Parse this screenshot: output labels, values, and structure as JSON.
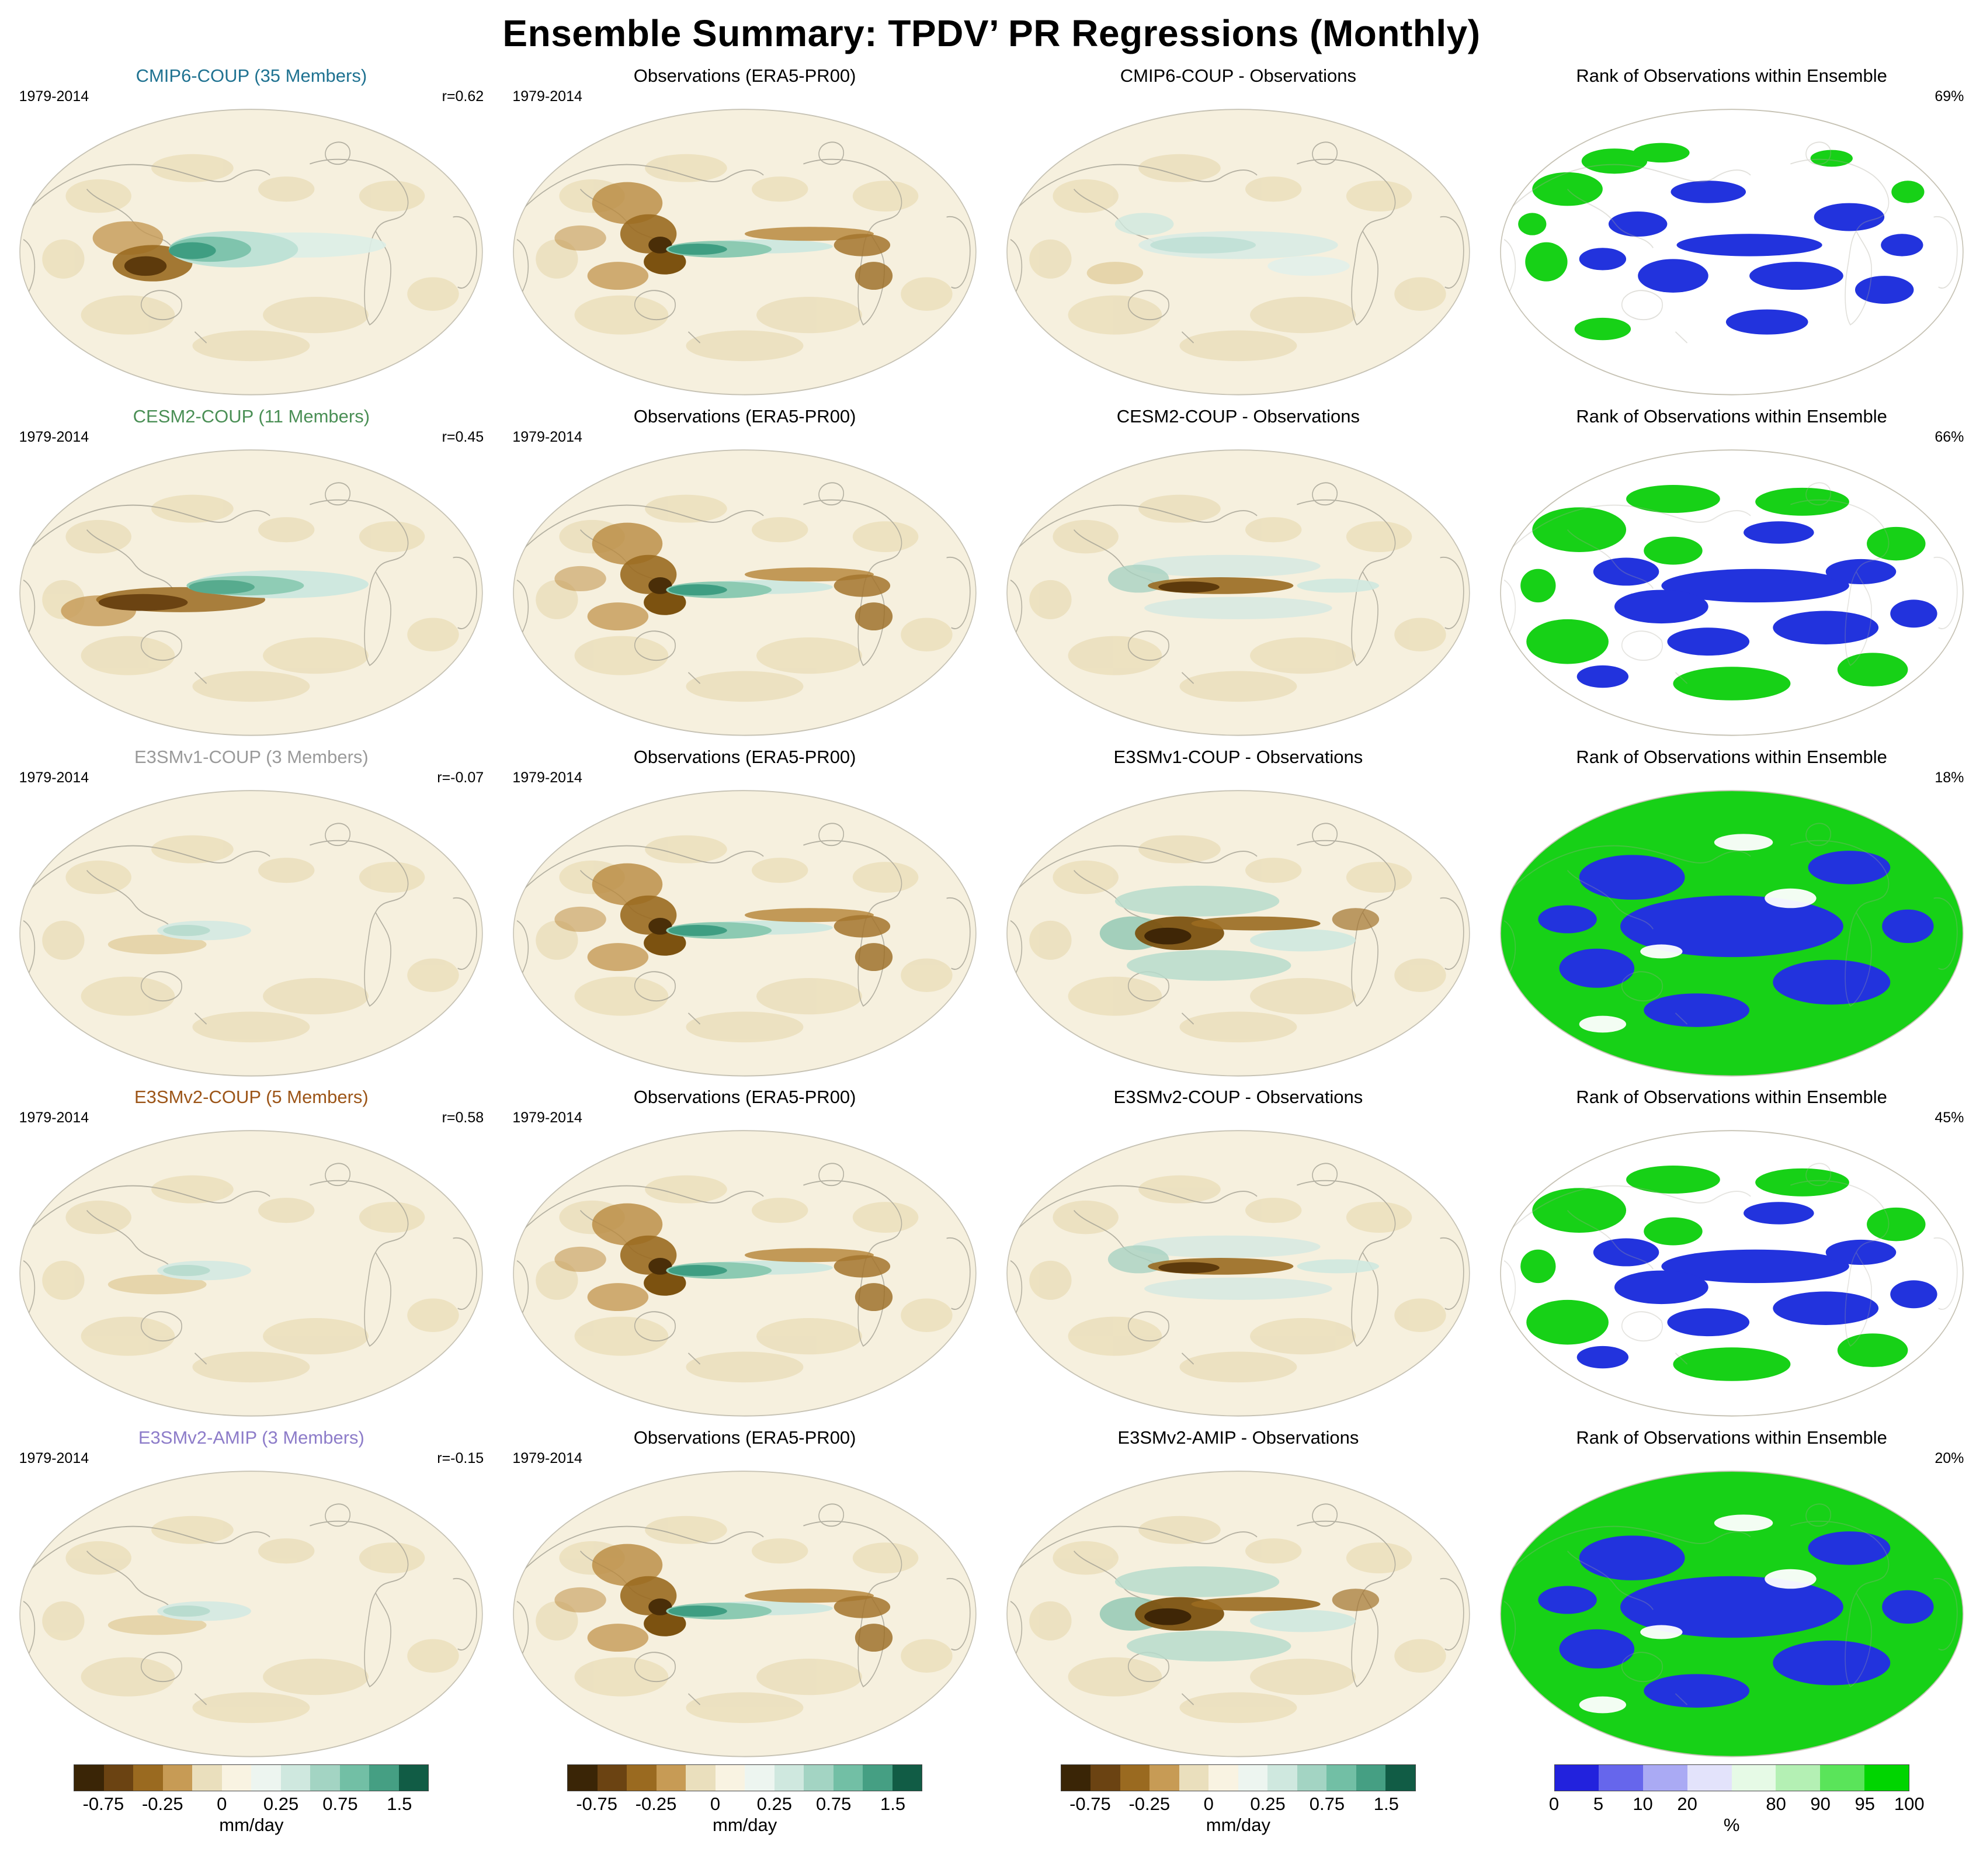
{
  "title": "Ensemble Summary: TPDV’ PR Regressions (Monthly)",
  "rows": [
    {
      "model_label": "CMIP6-COUP (35 Members)",
      "model_color": "#1f7291",
      "period": "1979-2014",
      "r_value": "r=0.62",
      "obs_title": "Observations (ERA5-PR00)",
      "obs_period": "1979-2014",
      "diff_title": "CMIP6-COUP - Observations",
      "rank_title": "Rank of Observations within Ensemble",
      "rank_percent": "69%"
    },
    {
      "model_label": "CESM2-COUP (11 Members)",
      "model_color": "#4a8f55",
      "period": "1979-2014",
      "r_value": "r=0.45",
      "obs_title": "Observations (ERA5-PR00)",
      "obs_period": "1979-2014",
      "diff_title": "CESM2-COUP - Observations",
      "rank_title": "Rank of Observations within Ensemble",
      "rank_percent": "66%"
    },
    {
      "model_label": "E3SMv1-COUP (3 Members)",
      "model_color": "#9a9a9a",
      "period": "1979-2014",
      "r_value": "r=-0.07",
      "obs_title": "Observations (ERA5-PR00)",
      "obs_period": "1979-2014",
      "diff_title": "E3SMv1-COUP - Observations",
      "rank_title": "Rank of Observations within Ensemble",
      "rank_percent": "18%"
    },
    {
      "model_label": "E3SMv2-COUP (5 Members)",
      "model_color": "#9c5518",
      "period": "1979-2014",
      "r_value": "r=0.58",
      "obs_title": "Observations (ERA5-PR00)",
      "obs_period": "1979-2014",
      "diff_title": "E3SMv2-COUP - Observations",
      "rank_title": "Rank of Observations within Ensemble",
      "rank_percent": "45%"
    },
    {
      "model_label": "E3SMv2-AMIP (3 Members)",
      "model_color": "#8d7cc9",
      "period": "1979-2014",
      "r_value": "r=-0.15",
      "obs_title": "Observations (ERA5-PR00)",
      "obs_period": "1979-2014",
      "diff_title": "E3SMv2-AMIP - Observations",
      "rank_title": "Rank of Observations within Ensemble",
      "rank_percent": "20%"
    }
  ],
  "colorbars": {
    "mmday": {
      "unit": "mm/day",
      "segments": [
        "#3a2506",
        "#6b4312",
        "#9a6a20",
        "#c79b55",
        "#eadfbd",
        "#f9f3e2",
        "#edf5f0",
        "#cfe8df",
        "#a3d4c3",
        "#72bfa5",
        "#459f83",
        "#115c45"
      ],
      "ticks": [
        {
          "label": "-0.75",
          "boundary": 1
        },
        {
          "label": "-0.25",
          "boundary": 3
        },
        {
          "label": "0",
          "boundary": 5
        },
        {
          "label": "0.25",
          "boundary": 7
        },
        {
          "label": "0.75",
          "boundary": 9
        },
        {
          "label": "1.5",
          "boundary": 11
        }
      ]
    },
    "percent": {
      "unit": "%",
      "segments": [
        "#2222dd",
        "#6666ec",
        "#aaaaf4",
        "#e3e3fb",
        "#e6fae6",
        "#b4f0b4",
        "#5ae45a",
        "#00d500"
      ],
      "ticks": [
        {
          "label": "0",
          "boundary": 0
        },
        {
          "label": "5",
          "boundary": 1
        },
        {
          "label": "10",
          "boundary": 2
        },
        {
          "label": "20",
          "boundary": 3
        },
        {
          "label": "80",
          "boundary": 5
        },
        {
          "label": "90",
          "boundary": 6
        },
        {
          "label": "95",
          "boundary": 7
        },
        {
          "label": "100",
          "boundary": 8
        }
      ]
    }
  },
  "chart_data": {
    "type": "heatmap",
    "title": "Ensemble Summary: TPDV’ PR Regressions (Monthly)",
    "description": "5x4 grid of global elliptical-projection maps showing monthly precipitation (PR) regressions onto TPDV for each model ensemble, the ERA5-PR00 observations, the model-minus-observations difference, and the rank of observations within each ensemble.",
    "period": "1979-2014",
    "column_titles": [
      "Model ensemble mean",
      "Observations (ERA5-PR00)",
      "Model - Observations",
      "Rank of Observations within Ensemble"
    ],
    "rows": [
      {
        "model": "CMIP6-COUP",
        "members": 35,
        "pattern_correlation_r": 0.62,
        "obs_rank_percent": 69
      },
      {
        "model": "CESM2-COUP",
        "members": 11,
        "pattern_correlation_r": 0.45,
        "obs_rank_percent": 66
      },
      {
        "model": "E3SMv1-COUP",
        "members": 3,
        "pattern_correlation_r": -0.07,
        "obs_rank_percent": 18
      },
      {
        "model": "E3SMv2-COUP",
        "members": 5,
        "pattern_correlation_r": 0.58,
        "obs_rank_percent": 45
      },
      {
        "model": "E3SMv2-AMIP",
        "members": 3,
        "pattern_correlation_r": -0.15,
        "obs_rank_percent": 20
      }
    ],
    "regression_colorbar": {
      "ticks": [
        -0.75,
        -0.25,
        0,
        0.25,
        0.75,
        1.5
      ],
      "unit": "mm/day",
      "palette": "brown-white-teal diverging"
    },
    "rank_colorbar": {
      "ticks": [
        0,
        5,
        10,
        20,
        80,
        90,
        95,
        100
      ],
      "unit": "%",
      "palette": "blue-white-green"
    }
  }
}
